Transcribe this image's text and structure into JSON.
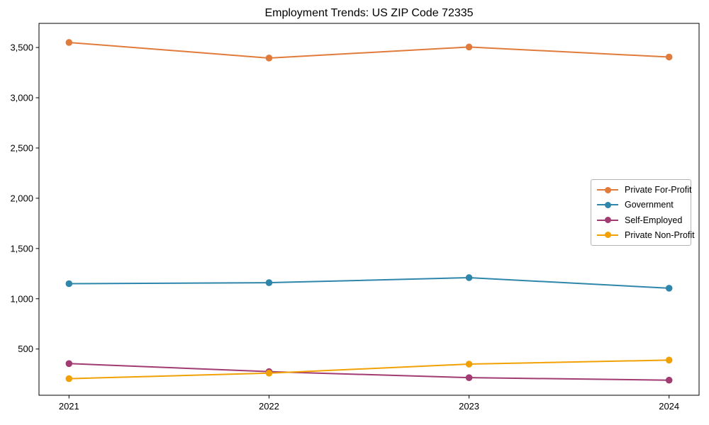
{
  "chart_data": {
    "type": "line",
    "title": "Employment Trends: US ZIP Code 72335",
    "xlabel": "",
    "ylabel": "",
    "categories": [
      "2021",
      "2022",
      "2023",
      "2024"
    ],
    "series": [
      {
        "name": "Private For-Profit",
        "color": "#e07b3c",
        "values": [
          3550,
          3395,
          3505,
          3405
        ]
      },
      {
        "name": "Government",
        "color": "#2e86ab",
        "values": [
          1150,
          1160,
          1210,
          1105
        ]
      },
      {
        "name": "Self-Employed",
        "color": "#a23b72",
        "values": [
          355,
          275,
          215,
          190
        ]
      },
      {
        "name": "Private Non-Profit",
        "color": "#f2a104",
        "values": [
          205,
          260,
          350,
          390
        ]
      }
    ],
    "yticks": [
      500,
      1000,
      1500,
      2000,
      2500,
      3000,
      3500
    ],
    "ytick_labels": [
      "500",
      "1,000",
      "1,500",
      "2,000",
      "2,500",
      "3,000",
      "3,500"
    ],
    "ylim": [
      40,
      3740
    ],
    "xlim": [
      -0.15,
      3.15
    ],
    "grid": false,
    "marker": "circle",
    "legend_position": "center right",
    "frame_color": "#000000",
    "text_color": "#000000"
  }
}
